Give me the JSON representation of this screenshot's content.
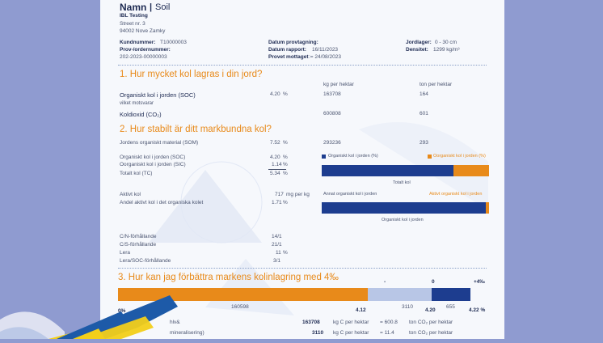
{
  "header": {
    "name": "Namn",
    "product": "Soil",
    "company": "IBL Testing",
    "street": "Street nr. 3",
    "city": "94002 Nove Zamky",
    "customer_label": "Kundnummer:",
    "customer_value": "T10000003",
    "order_label": "Prov-/ordernummer:",
    "order_value": "202-2023-00000003",
    "sample_date_label": "Datum provtagning:",
    "report_date_label": "Datum rapport:",
    "report_date_value": "16/11/2023",
    "received_label": "Provet mottaget",
    "received_value": ":= 24/08/2023",
    "layer_label": "Jordlager:",
    "layer_value": "0 - 30 cm",
    "density_label": "Densitet:",
    "density_value": "1299 kg/m³"
  },
  "section1": {
    "title": "1. Hur mycket kol lagras i din jord?",
    "col_kg": "kg per hektar",
    "col_ton": "ton per hektar",
    "soc_label": "Organiskt kol i jorden (SOC)",
    "soc_pct": "4.20",
    "soc_unit": "%",
    "soc_kg": "163708",
    "soc_ton": "164",
    "equiv": "vilket motsvarar",
    "co2_label": "Koldioxid (CO₂)",
    "co2_kg": "600808",
    "co2_ton": "601"
  },
  "section2": {
    "title": "2. Hur stabilt är ditt markbundna kol?",
    "som_label": "Jordens organiskt material (SOM)",
    "som_pct": "7.52",
    "som_unit": "%",
    "som_kg": "293236",
    "som_ton": "293",
    "soc_label": "Organiskt kol i jorden (SOC)",
    "soc_pct": "4.20",
    "soc_unit": "%",
    "sic_label": "Oorganiskt kol i jorden (SIC)",
    "sic_pct": "1.14",
    "sic_unit": "%",
    "tc_label": "Totalt kol (TC)",
    "tc_pct": "5.34",
    "tc_unit": "%",
    "active_label": "Aktivt kol",
    "active_value": "717",
    "active_unit": "mg per kg",
    "active_share_label": "Andel aktivt kol i det organiska kolet",
    "active_share_pct": "1.71",
    "active_share_unit": "%",
    "legend_soc": "Organiskt kol i jorden (%)",
    "legend_sic": "Oorganiskt kol i jorden (%)",
    "bar1_caption": "Totalt kol",
    "bar1_soc_fraction": 0.787,
    "legend_other": "Annat organiskt kol i jorden",
    "legend_active": "Aktivt organiskt kol i jorden",
    "bar2_caption": "Organiskt kol i jorden",
    "bar2_active_fraction": 0.0171,
    "cn_label": "C/N-förhållande",
    "cn_value": "14/1",
    "cs_label": "C/S-förhållande",
    "cs_value": "21/1",
    "clay_label": "Lera",
    "clay_value": "11",
    "clay_unit": "%",
    "clay_soc_label": "Lera/SOC-förhållande",
    "clay_soc_value": "3/1"
  },
  "section3": {
    "title": "3. Hur kan jag förbättra markens kolinlagring med 4‰",
    "mark_minus": "-",
    "mark_zero": "0",
    "mark_plus": "+4‰",
    "left_pct": "0%",
    "seg1_value": "160598",
    "seg2_value": "3110",
    "seg3_value": "655",
    "tick1": "4.12",
    "tick2": "4.20",
    "tick3": "4.22 %",
    "seg1_fraction": 0.955,
    "seg2_fraction": 0.04,
    "row1_label": "hlv&",
    "row1_value": "163708",
    "row1_unit": "kg C per hektar",
    "row1_co2": "= 600.8",
    "row1_co2_unit": "ton CO₂ per hektar",
    "row2_label": "mineralisering)",
    "row2_value": "3110",
    "row2_unit": "kg C per hektar",
    "row2_co2": "= 11.4",
    "row2_co2_unit": "ton CO₂ per hektar"
  },
  "colors": {
    "navy": "#1d3d8f",
    "orange": "#e88a1a",
    "light_blue": "#b8c6e6",
    "background": "#8f9bd0"
  }
}
